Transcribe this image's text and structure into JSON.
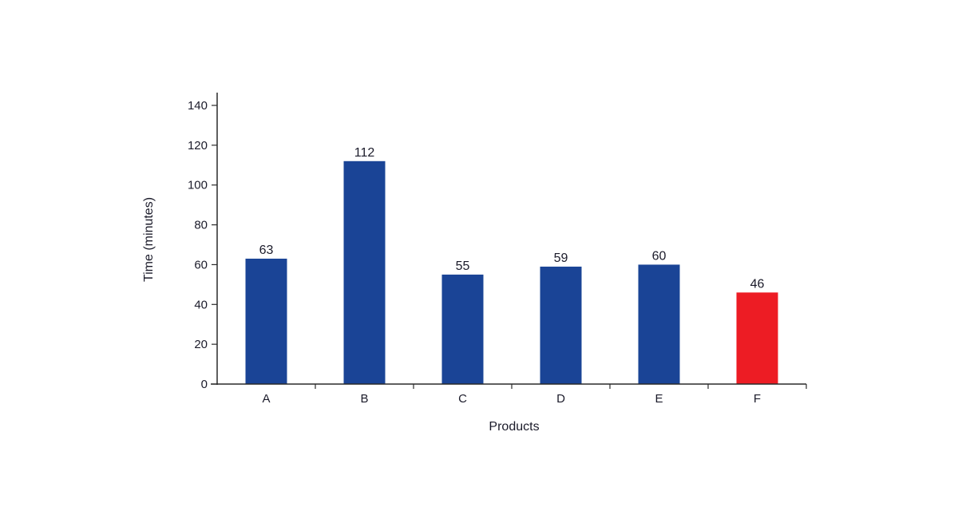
{
  "chart_data": {
    "type": "bar",
    "categories": [
      "A",
      "B",
      "C",
      "D",
      "E",
      "F"
    ],
    "values": [
      63,
      112,
      55,
      59,
      60,
      46
    ],
    "data_labels": [
      "63",
      "112",
      "55",
      "59",
      "60",
      "46"
    ],
    "bar_colors": [
      "#1a4496",
      "#1a4496",
      "#1a4496",
      "#1a4496",
      "#1a4496",
      "#ed1c24"
    ],
    "xlabel": "Products",
    "ylabel": "Time (minutes)",
    "ylim": [
      0,
      140
    ],
    "yticks": [
      0,
      20,
      40,
      60,
      80,
      100,
      120,
      140
    ],
    "grid": false,
    "legend": "none"
  }
}
